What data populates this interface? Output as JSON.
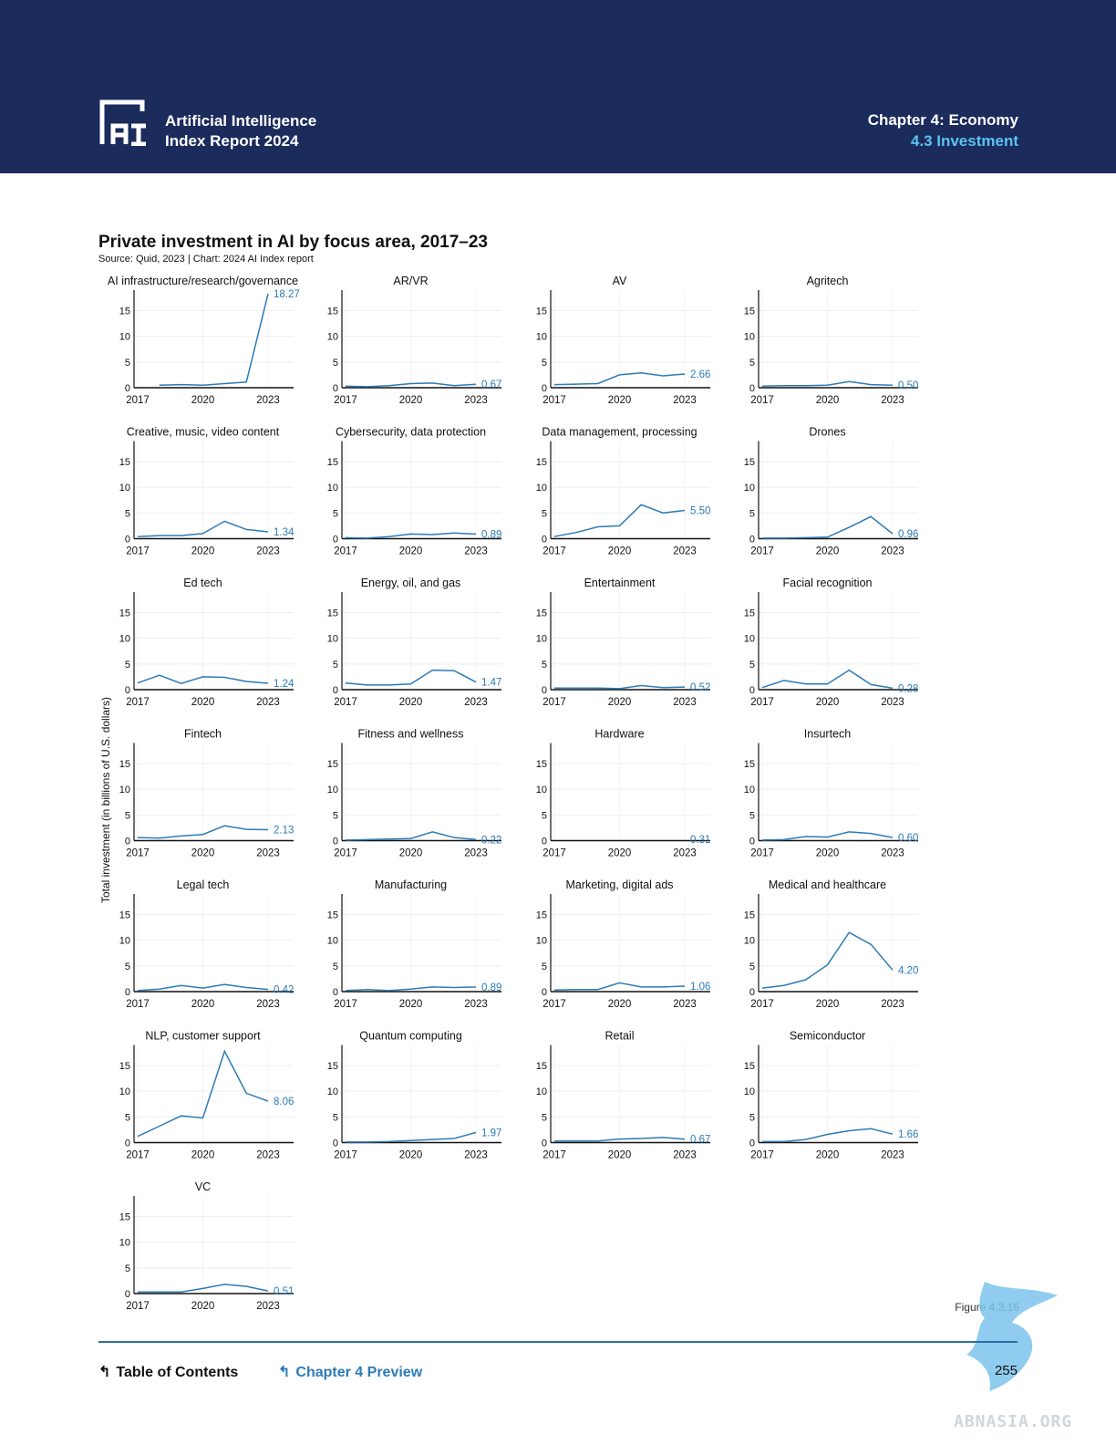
{
  "header": {
    "brand_line1": "Artificial Intelligence",
    "brand_line2": "Index Report 2024",
    "chapter": "Chapter 4: Economy",
    "section": "4.3 Investment"
  },
  "figure": {
    "title": "Private investment in AI by focus area, 2017–23",
    "source": "Source: Quid, 2023 | Chart: 2024 AI Index report",
    "ylabel": "Total investment (in billions of U.S. dollars)",
    "label": "Figure 4.3.16"
  },
  "footer": {
    "toc": "Table of Contents",
    "chapter_preview": "Chapter 4 Preview",
    "page": "255"
  },
  "watermark": "ABNASIA.ORG",
  "colors": {
    "header_bg": "#1b2b5c",
    "accent": "#5cc3ef",
    "line": "#2c7bb6"
  },
  "chart_data": {
    "type": "line",
    "x": [
      2017,
      2018,
      2019,
      2020,
      2021,
      2022,
      2023
    ],
    "xticks": [
      "2017",
      "2020",
      "2023"
    ],
    "yticks": [
      "0",
      "5",
      "10",
      "15"
    ],
    "ylim": [
      0,
      19
    ],
    "panels": [
      {
        "name": "AI infrastructure/research/governance",
        "values": [
          null,
          0.5,
          0.6,
          0.5,
          0.8,
          1.1,
          18.27
        ],
        "label": "18.27"
      },
      {
        "name": "AR/VR",
        "values": [
          0.3,
          0.2,
          0.4,
          0.8,
          0.9,
          0.4,
          0.67
        ],
        "label": "0.67"
      },
      {
        "name": "AV",
        "values": [
          0.6,
          0.7,
          0.8,
          2.5,
          2.9,
          2.3,
          2.66
        ],
        "label": "2.66"
      },
      {
        "name": "Agritech",
        "values": [
          0.3,
          0.4,
          0.4,
          0.5,
          1.2,
          0.6,
          0.5
        ],
        "label": "0.50"
      },
      {
        "name": "Creative, music, video content",
        "values": [
          0.4,
          0.6,
          0.6,
          1.0,
          3.4,
          1.8,
          1.34
        ],
        "label": "1.34"
      },
      {
        "name": "Cybersecurity, data protection",
        "values": [
          0.2,
          0.1,
          0.4,
          0.9,
          0.8,
          1.1,
          0.89
        ],
        "label": "0.89"
      },
      {
        "name": "Data management, processing",
        "values": [
          0.4,
          1.2,
          2.3,
          2.5,
          6.6,
          5.0,
          5.5
        ],
        "label": "5.50"
      },
      {
        "name": "Drones",
        "values": [
          0.1,
          0.1,
          0.2,
          0.3,
          2.2,
          4.3,
          0.96
        ],
        "label": "0.96"
      },
      {
        "name": "Ed tech",
        "values": [
          1.3,
          2.8,
          1.2,
          2.5,
          2.4,
          1.6,
          1.24
        ],
        "label": "1.24"
      },
      {
        "name": "Energy, oil, and gas",
        "values": [
          1.3,
          0.9,
          0.9,
          1.1,
          3.8,
          3.7,
          1.47
        ],
        "label": "1.47"
      },
      {
        "name": "Entertainment",
        "values": [
          0.3,
          0.3,
          0.3,
          0.2,
          0.8,
          0.4,
          0.52
        ],
        "label": "0.52"
      },
      {
        "name": "Facial recognition",
        "values": [
          0.4,
          1.8,
          1.1,
          1.1,
          3.8,
          1.0,
          0.28
        ],
        "label": "0.28"
      },
      {
        "name": "Fintech",
        "values": [
          0.6,
          0.5,
          0.9,
          1.2,
          2.9,
          2.2,
          2.13
        ],
        "label": "2.13"
      },
      {
        "name": "Fitness and wellness",
        "values": [
          0.1,
          0.2,
          0.3,
          0.4,
          1.7,
          0.6,
          0.22
        ],
        "label": "0.22"
      },
      {
        "name": "Hardware",
        "values": [
          null,
          null,
          null,
          null,
          null,
          null,
          0.31
        ],
        "label": "0.31"
      },
      {
        "name": "Insurtech",
        "values": [
          0.1,
          0.2,
          0.8,
          0.7,
          1.7,
          1.4,
          0.6
        ],
        "label": "0.60"
      },
      {
        "name": "Legal tech",
        "values": [
          0.2,
          0.5,
          1.2,
          0.7,
          1.4,
          0.8,
          0.42
        ],
        "label": "0.42"
      },
      {
        "name": "Manufacturing",
        "values": [
          0.2,
          0.4,
          0.2,
          0.5,
          0.9,
          0.8,
          0.89
        ],
        "label": "0.89"
      },
      {
        "name": "Marketing, digital ads",
        "values": [
          0.3,
          0.4,
          0.4,
          1.7,
          0.9,
          0.9,
          1.06
        ],
        "label": "1.06"
      },
      {
        "name": "Medical and healthcare",
        "values": [
          0.7,
          1.2,
          2.3,
          5.2,
          11.5,
          9.2,
          4.2
        ],
        "label": "4.20"
      },
      {
        "name": "NLP, customer support",
        "values": [
          1.2,
          3.2,
          5.2,
          4.8,
          17.8,
          9.6,
          8.06
        ],
        "label": "8.06"
      },
      {
        "name": "Quantum computing",
        "values": [
          0.1,
          0.1,
          0.2,
          0.4,
          0.6,
          0.8,
          1.97
        ],
        "label": "1.97"
      },
      {
        "name": "Retail",
        "values": [
          0.3,
          0.3,
          0.3,
          0.7,
          0.8,
          1.0,
          0.67
        ],
        "label": "0.67"
      },
      {
        "name": "Semiconductor",
        "values": [
          0.2,
          0.2,
          0.6,
          1.6,
          2.3,
          2.7,
          1.66
        ],
        "label": "1.66"
      },
      {
        "name": "VC",
        "values": [
          0.3,
          0.3,
          0.3,
          1.0,
          1.8,
          1.4,
          0.51
        ],
        "label": "0.51"
      }
    ]
  }
}
